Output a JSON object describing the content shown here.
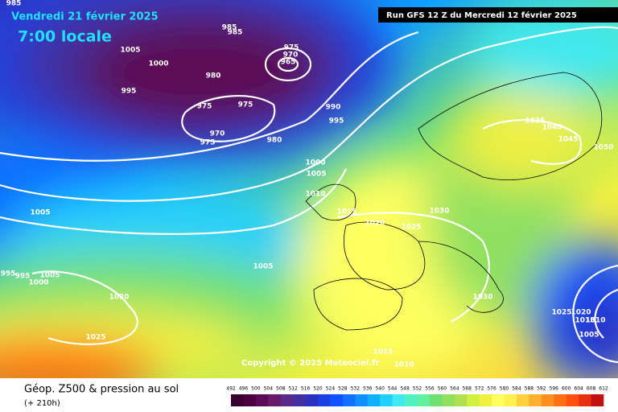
{
  "header": {
    "date": "Vendredi 21 février 2025",
    "time": "7:00 locale",
    "run": "Run GFS 12 Z du Mercredi 12 février 2025"
  },
  "copyright": "Copyright © 2025 Meteociel.fr",
  "legend": {
    "title": "Géop. Z500 & pression au sol",
    "subtitle": "(+ 210h)",
    "ticks": [
      492,
      496,
      500,
      504,
      508,
      512,
      516,
      520,
      524,
      528,
      532,
      536,
      540,
      544,
      548,
      552,
      556,
      560,
      564,
      568,
      572,
      576,
      580,
      584,
      588,
      592,
      596,
      600,
      604,
      608,
      612
    ],
    "colors": [
      "#3a0030",
      "#4b0040",
      "#5c0a55",
      "#6a1a6a",
      "#5a2a8a",
      "#4030a0",
      "#2a30c0",
      "#1a40e0",
      "#1050ff",
      "#1070ff",
      "#1090ff",
      "#10b0ff",
      "#20d0ff",
      "#40e8f0",
      "#50f0c0",
      "#60f0a0",
      "#70e070",
      "#90e060",
      "#b0e050",
      "#d0f040",
      "#f0f040",
      "#ffff60",
      "#fff050",
      "#ffd040",
      "#ffb030",
      "#ff9020",
      "#ff7010",
      "#ff5010",
      "#e83010",
      "#c01010"
    ]
  },
  "isobar_labels": [
    "985",
    "985",
    "985",
    "1005",
    "1000",
    "975",
    "970",
    "965",
    "980",
    "995",
    "975",
    "975",
    "990",
    "995",
    "970",
    "975",
    "980",
    "1000",
    "1005",
    "1010",
    "1015",
    "1020",
    "1025",
    "1030",
    "1035",
    "1040",
    "1045",
    "1050",
    "1005",
    "995",
    "995",
    "1000",
    "1005",
    "1005",
    "1020",
    "1025",
    "1030",
    "1025",
    "1020",
    "1015",
    "1010",
    "1005",
    "1015",
    "1010"
  ]
}
